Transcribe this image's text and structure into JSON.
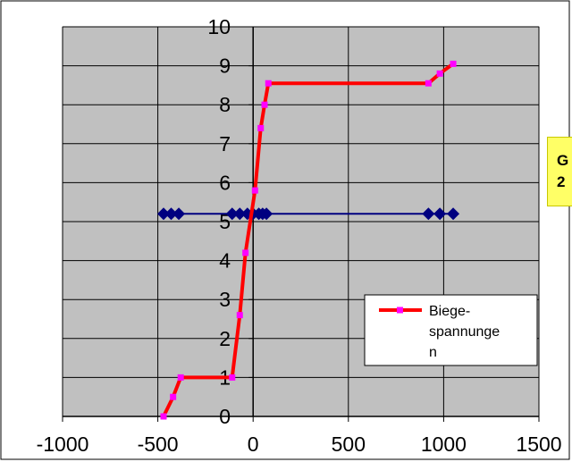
{
  "chart_data": {
    "type": "scatter",
    "xlim": [
      -1000,
      1500
    ],
    "ylim": [
      0,
      10
    ],
    "x_ticks": [
      "-1000",
      "-500",
      "0",
      "500",
      "1000",
      "1500"
    ],
    "y_ticks": [
      "0",
      "1",
      "2",
      "3",
      "4",
      "5",
      "6",
      "7",
      "8",
      "9",
      "10"
    ],
    "grid": true,
    "plot_background": "#c0c0c0",
    "legend_position": "bottom-right",
    "series": [
      {
        "name": "Biege-spannunge n",
        "style": "line-with-square-markers",
        "color": "#ff0000",
        "marker_color": "#ff00ff",
        "x": [
          -470,
          -420,
          -380,
          -110,
          -70,
          -40,
          10,
          40,
          60,
          80,
          920,
          980,
          1050
        ],
        "y": [
          0,
          0.5,
          1,
          1,
          2.6,
          4.2,
          5.8,
          7.4,
          8,
          8.55,
          8.55,
          8.8,
          9.05
        ]
      },
      {
        "style": "line-with-diamond-markers",
        "color": "#000080",
        "x": [
          -470,
          -430,
          -390,
          -110,
          -70,
          -30,
          0,
          30,
          50,
          70,
          920,
          980,
          1050
        ],
        "y": [
          5.2,
          5.2,
          5.2,
          5.2,
          5.2,
          5.2,
          5.2,
          5.2,
          5.2,
          5.2,
          5.2,
          5.2,
          5.2
        ]
      }
    ],
    "legend": {
      "label_lines": [
        "Biege-",
        "spannunge",
        "n"
      ]
    }
  },
  "callout": {
    "lines": [
      "G",
      "2"
    ]
  }
}
